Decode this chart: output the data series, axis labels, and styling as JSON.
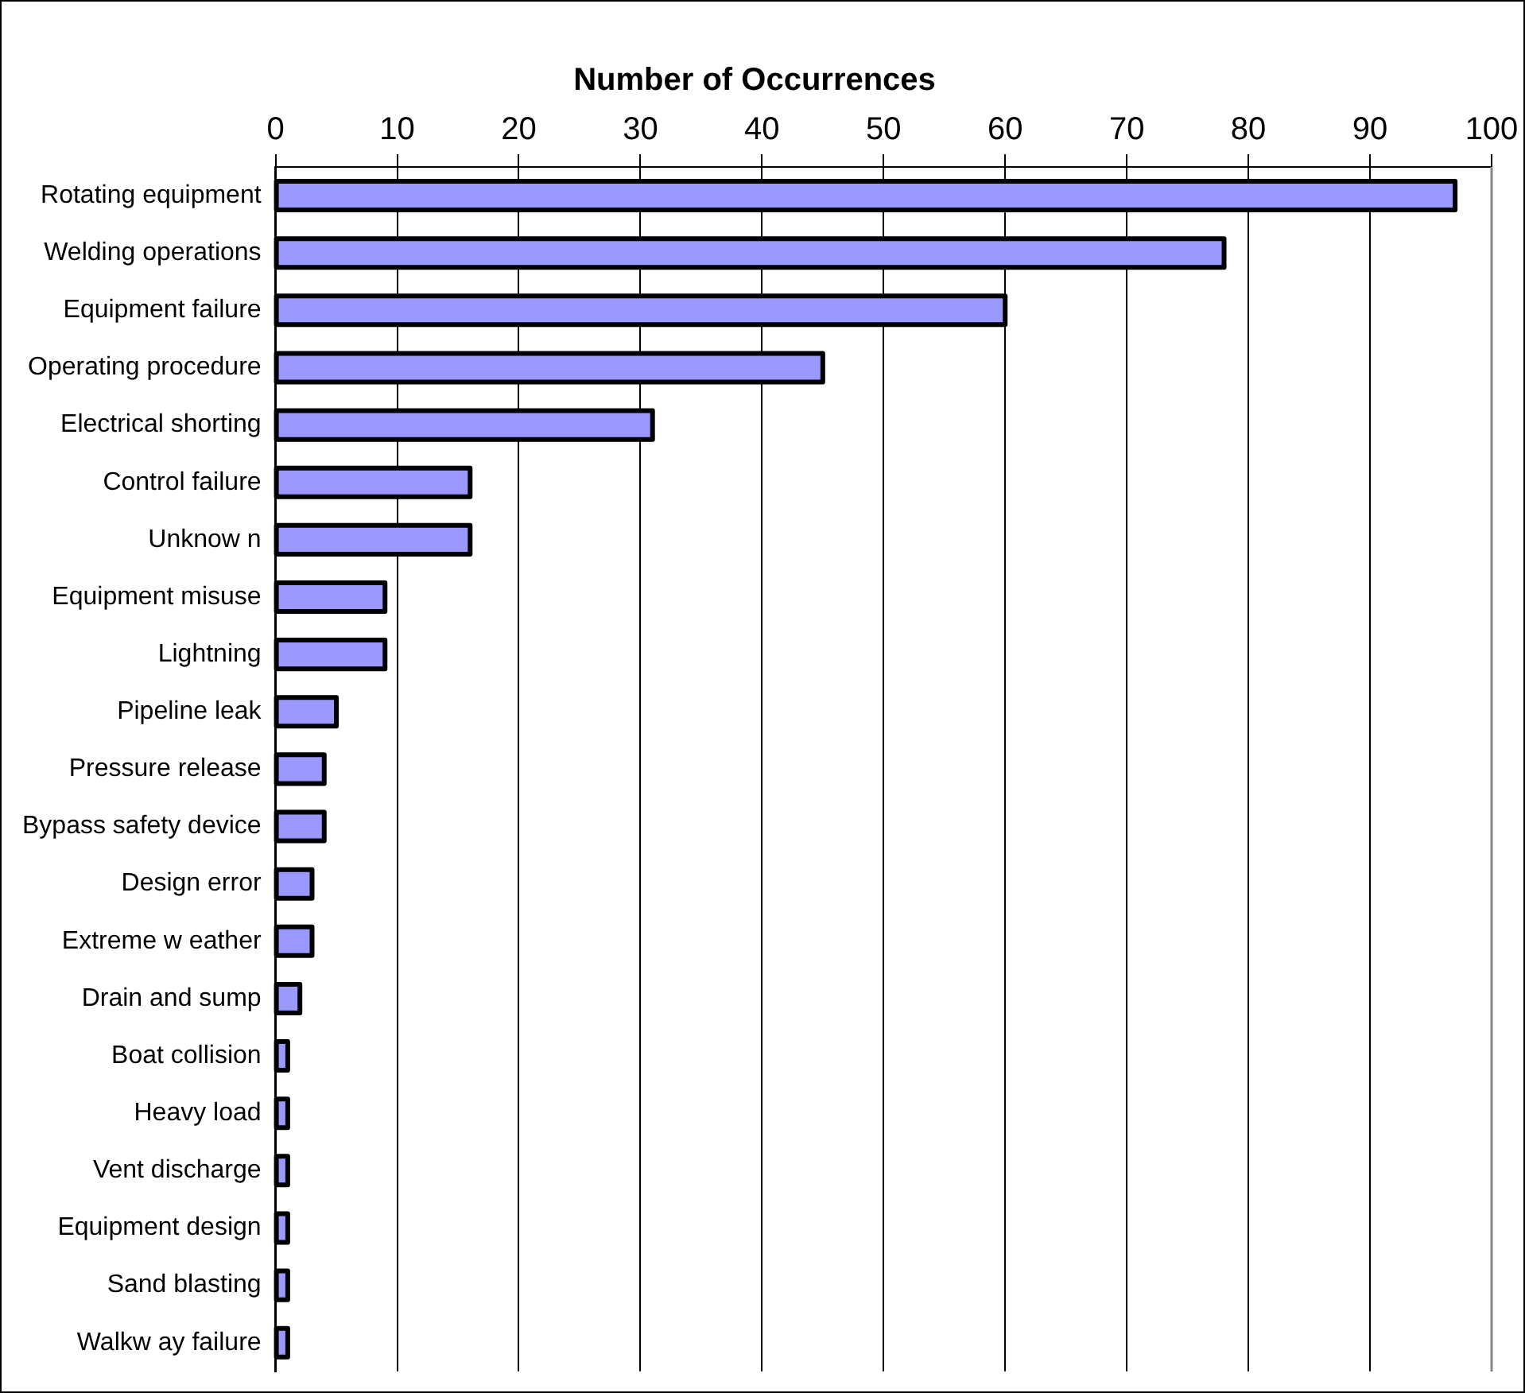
{
  "chart_data": {
    "type": "bar",
    "orientation": "horizontal",
    "title": "Number of Occurrences",
    "categories": [
      "Rotating equipment",
      "Welding operations",
      "Equipment failure",
      "Operating procedure",
      "Electrical shorting",
      "Control failure",
      "Unknow n",
      "Equipment misuse",
      "Lightning",
      "Pipeline leak",
      "Pressure release",
      "Bypass safety device",
      "Design error",
      "Extreme w eather",
      "Drain and sump",
      "Boat collision",
      "Heavy load",
      "Vent discharge",
      "Equipment design",
      "Sand blasting",
      "Walkw ay failure"
    ],
    "values": [
      97,
      78,
      60,
      45,
      31,
      16,
      16,
      9,
      9,
      5,
      4,
      4,
      3,
      3,
      2,
      1,
      1,
      1,
      1,
      1,
      1
    ],
    "color": "#9999ff",
    "xlim": [
      0,
      100
    ],
    "xticks": [
      0,
      10,
      20,
      30,
      40,
      50,
      60,
      70,
      80,
      90,
      100
    ],
    "grid": "x",
    "legend": false
  }
}
